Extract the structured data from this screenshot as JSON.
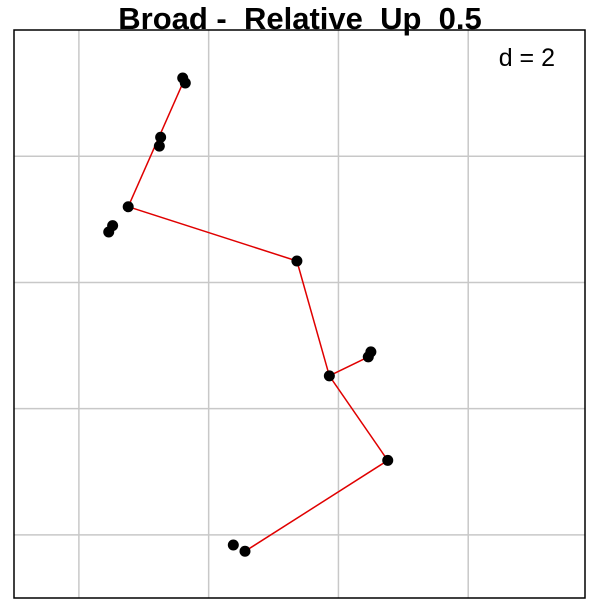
{
  "chart_data": {
    "type": "scatter",
    "title": "Broad -  Relative  Up  0.5",
    "annotation": "d = 2",
    "annotation_position": "top-right",
    "grid": true,
    "xlabel": "",
    "ylabel": "",
    "xlim": [
      0,
      4.4
    ],
    "ylim": [
      0,
      4.5
    ],
    "colors": {
      "edge": "#e00000",
      "point": "#000000",
      "grid": "#c8c8c8",
      "frame": "#000000",
      "background": "#ffffff"
    },
    "points": [
      {
        "x": 1.3,
        "y": 4.12
      },
      {
        "x": 1.32,
        "y": 4.08
      },
      {
        "x": 1.13,
        "y": 3.65
      },
      {
        "x": 1.12,
        "y": 3.58
      },
      {
        "x": 0.88,
        "y": 3.1
      },
      {
        "x": 0.76,
        "y": 2.95
      },
      {
        "x": 0.73,
        "y": 2.9
      },
      {
        "x": 2.18,
        "y": 2.67
      },
      {
        "x": 2.75,
        "y": 1.95
      },
      {
        "x": 2.73,
        "y": 1.91
      },
      {
        "x": 2.43,
        "y": 1.76
      },
      {
        "x": 2.88,
        "y": 1.09
      },
      {
        "x": 1.69,
        "y": 0.42
      },
      {
        "x": 1.78,
        "y": 0.37
      }
    ],
    "edges": [
      {
        "from": [
          1.31,
          4.1
        ],
        "to": [
          0.88,
          3.1
        ]
      },
      {
        "from": [
          0.88,
          3.1
        ],
        "to": [
          2.18,
          2.67
        ]
      },
      {
        "from": [
          2.18,
          2.67
        ],
        "to": [
          2.43,
          1.76
        ]
      },
      {
        "from": [
          2.43,
          1.76
        ],
        "to": [
          2.73,
          1.91
        ]
      },
      {
        "from": [
          2.43,
          1.76
        ],
        "to": [
          2.88,
          1.09
        ]
      },
      {
        "from": [
          2.88,
          1.09
        ],
        "to": [
          1.78,
          0.37
        ]
      }
    ]
  }
}
